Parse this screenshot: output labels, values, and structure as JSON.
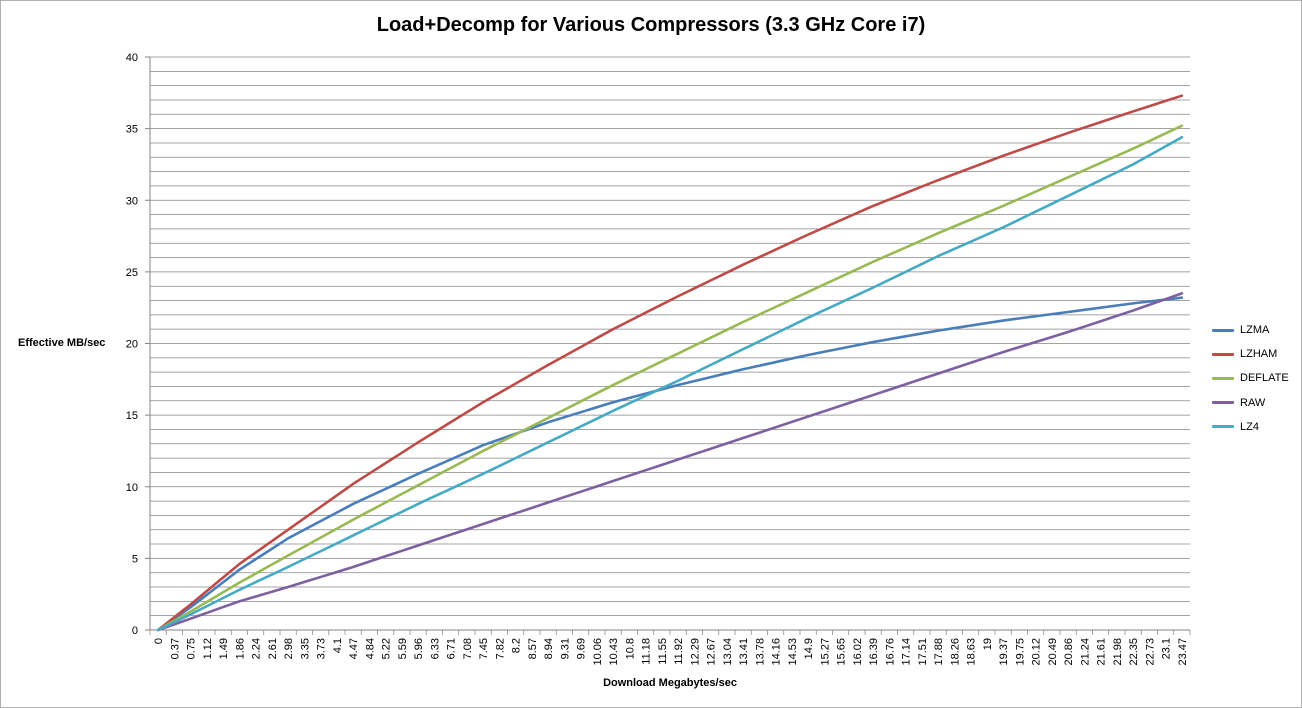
{
  "chart_data": {
    "type": "line",
    "title": "Load+Decomp for Various Compressors (3.3 GHz Core i7)",
    "xlabel": "Download Megabytes/sec",
    "ylabel": "Effective MB/sec",
    "ylim": [
      0,
      40
    ],
    "yticks": [
      0,
      5,
      10,
      15,
      20,
      25,
      30,
      35,
      40
    ],
    "grid": true,
    "legend_position": "right",
    "x": [
      "0",
      "0.37",
      "0.75",
      "1.12",
      "1.49",
      "1.86",
      "2.24",
      "2.61",
      "2.98",
      "3.35",
      "3.73",
      "4.1",
      "4.47",
      "4.84",
      "5.22",
      "5.59",
      "5.96",
      "6.33",
      "6.71",
      "7.08",
      "7.45",
      "7.82",
      "8.2",
      "8.57",
      "8.94",
      "9.31",
      "9.69",
      "10.06",
      "10.43",
      "10.8",
      "11.18",
      "11.55",
      "11.92",
      "12.29",
      "12.67",
      "13.04",
      "13.41",
      "13.78",
      "14.16",
      "14.53",
      "14.9",
      "15.27",
      "15.65",
      "16.02",
      "16.39",
      "16.76",
      "17.14",
      "17.51",
      "17.88",
      "18.26",
      "18.63",
      "19",
      "19.37",
      "19.75",
      "20.12",
      "20.49",
      "20.86",
      "21.24",
      "21.61",
      "21.98",
      "22.35",
      "22.73",
      "23.1",
      "23.47"
    ],
    "series": [
      {
        "name": "LZMA",
        "color": "#4a7ebb",
        "anchors": [
          [
            0,
            0
          ],
          [
            0.75,
            1.6
          ],
          [
            1.86,
            4.2
          ],
          [
            2.98,
            6.4
          ],
          [
            4.47,
            8.8
          ],
          [
            5.96,
            10.9
          ],
          [
            7.45,
            12.9
          ],
          [
            8.94,
            14.5
          ],
          [
            10.43,
            15.9
          ],
          [
            11.92,
            17.1
          ],
          [
            13.41,
            18.2
          ],
          [
            14.9,
            19.2
          ],
          [
            16.39,
            20.1
          ],
          [
            17.88,
            20.9
          ],
          [
            19.37,
            21.6
          ],
          [
            20.86,
            22.2
          ],
          [
            22.35,
            22.8
          ],
          [
            23.47,
            23.2
          ]
        ]
      },
      {
        "name": "LZHAM",
        "color": "#be4b48",
        "anchors": [
          [
            0,
            0
          ],
          [
            0.75,
            1.8
          ],
          [
            1.86,
            4.6
          ],
          [
            2.98,
            7.0
          ],
          [
            4.47,
            10.2
          ],
          [
            5.96,
            13.1
          ],
          [
            7.45,
            15.9
          ],
          [
            8.94,
            18.5
          ],
          [
            10.43,
            21.0
          ],
          [
            11.92,
            23.3
          ],
          [
            13.41,
            25.5
          ],
          [
            14.9,
            27.6
          ],
          [
            16.39,
            29.6
          ],
          [
            17.88,
            31.4
          ],
          [
            19.37,
            33.1
          ],
          [
            20.86,
            34.7
          ],
          [
            22.35,
            36.2
          ],
          [
            23.47,
            37.3
          ]
        ]
      },
      {
        "name": "DEFLATE",
        "color": "#98b954",
        "anchors": [
          [
            0,
            0
          ],
          [
            0.75,
            1.3
          ],
          [
            1.86,
            3.3
          ],
          [
            2.98,
            5.2
          ],
          [
            4.47,
            7.7
          ],
          [
            5.96,
            10.1
          ],
          [
            7.45,
            12.5
          ],
          [
            8.94,
            14.8
          ],
          [
            10.43,
            17.1
          ],
          [
            11.92,
            19.3
          ],
          [
            13.41,
            21.5
          ],
          [
            14.9,
            23.6
          ],
          [
            16.39,
            25.7
          ],
          [
            17.88,
            27.7
          ],
          [
            19.37,
            29.6
          ],
          [
            20.86,
            31.6
          ],
          [
            22.35,
            33.6
          ],
          [
            23.47,
            35.2
          ]
        ]
      },
      {
        "name": "RAW",
        "color": "#7d60a0",
        "anchors": [
          [
            0,
            0
          ],
          [
            0.75,
            0.8
          ],
          [
            1.86,
            2.0
          ],
          [
            2.98,
            3.0
          ],
          [
            4.47,
            4.4
          ],
          [
            5.96,
            5.9
          ],
          [
            7.45,
            7.4
          ],
          [
            8.94,
            8.9
          ],
          [
            10.43,
            10.4
          ],
          [
            11.92,
            11.9
          ],
          [
            13.41,
            13.4
          ],
          [
            14.9,
            14.9
          ],
          [
            16.39,
            16.4
          ],
          [
            17.88,
            17.9
          ],
          [
            19.37,
            19.4
          ],
          [
            20.86,
            20.8
          ],
          [
            22.35,
            22.3
          ],
          [
            23.47,
            23.5
          ]
        ]
      },
      {
        "name": "LZ4",
        "color": "#46aac5",
        "anchors": [
          [
            0,
            0
          ],
          [
            0.75,
            1.1
          ],
          [
            1.86,
            2.8
          ],
          [
            2.98,
            4.4
          ],
          [
            4.47,
            6.6
          ],
          [
            5.96,
            8.8
          ],
          [
            7.45,
            10.9
          ],
          [
            8.94,
            13.1
          ],
          [
            10.43,
            15.3
          ],
          [
            11.92,
            17.4
          ],
          [
            13.41,
            19.6
          ],
          [
            14.9,
            21.8
          ],
          [
            16.39,
            23.9
          ],
          [
            17.88,
            26.1
          ],
          [
            19.37,
            28.1
          ],
          [
            20.86,
            30.3
          ],
          [
            22.35,
            32.5
          ],
          [
            23.47,
            34.4
          ]
        ]
      }
    ]
  }
}
